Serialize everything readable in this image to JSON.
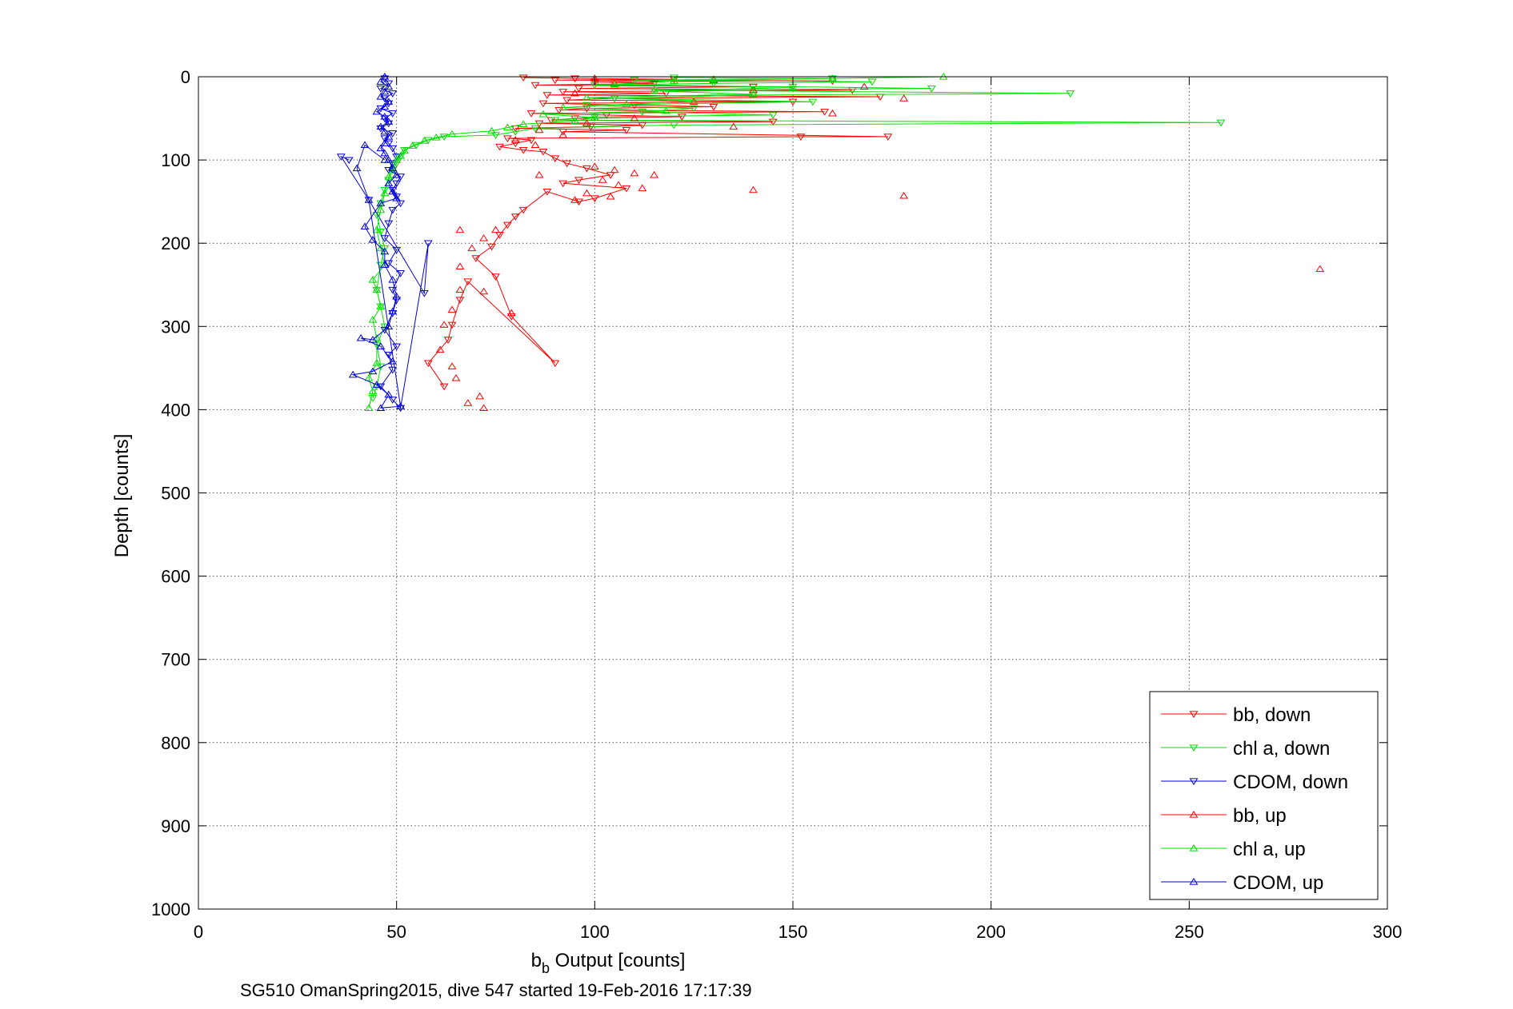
{
  "colors": {
    "bb": "#ff0000",
    "chl": "#00e000",
    "cdom": "#0000e0",
    "grid": "#555555",
    "axis": "#000000"
  },
  "chart_data": {
    "type": "scatter",
    "xlabel_main": "b",
    "xlabel_sub": "b",
    "xlabel_rest": " Output [counts]",
    "ylabel": "Depth [counts]",
    "caption": "SG510 OmanSpring2015, dive 547 started 19-Feb-2016 17:17:39",
    "xlim": [
      0,
      300
    ],
    "ylim": [
      0,
      1000
    ],
    "y_reversed": true,
    "grid": true,
    "legend_position": "bottom-right",
    "xticks": [
      0,
      50,
      100,
      150,
      200,
      250,
      300
    ],
    "yticks": [
      0,
      100,
      200,
      300,
      400,
      500,
      600,
      700,
      800,
      900,
      1000
    ],
    "series": [
      {
        "name": "bb, down",
        "color_key": "bb",
        "marker": "triangle-down",
        "lines": true,
        "points": [
          [
            82,
            1
          ],
          [
            95,
            2
          ],
          [
            120,
            3
          ],
          [
            90,
            4
          ],
          [
            160,
            5
          ],
          [
            100,
            6
          ],
          [
            115,
            8
          ],
          [
            85,
            10
          ],
          [
            140,
            12
          ],
          [
            96,
            14
          ],
          [
            165,
            16
          ],
          [
            92,
            18
          ],
          [
            118,
            20
          ],
          [
            88,
            22
          ],
          [
            172,
            24
          ],
          [
            105,
            26
          ],
          [
            93,
            28
          ],
          [
            150,
            30
          ],
          [
            87,
            32
          ],
          [
            110,
            34
          ],
          [
            130,
            36
          ],
          [
            98,
            38
          ],
          [
            91,
            40
          ],
          [
            158,
            42
          ],
          [
            84,
            44
          ],
          [
            103,
            46
          ],
          [
            122,
            48
          ],
          [
            95,
            50
          ],
          [
            89,
            52
          ],
          [
            145,
            54
          ],
          [
            86,
            56
          ],
          [
            112,
            58
          ],
          [
            99,
            60
          ],
          [
            80,
            62
          ],
          [
            108,
            64
          ],
          [
            92,
            66
          ],
          [
            174,
            72
          ],
          [
            152,
            72
          ],
          [
            78,
            74
          ],
          [
            84,
            76
          ],
          [
            80,
            80
          ],
          [
            76,
            84
          ],
          [
            82,
            88
          ],
          [
            87,
            90
          ],
          [
            90,
            98
          ],
          [
            93,
            104
          ],
          [
            98,
            110
          ],
          [
            104,
            118
          ],
          [
            96,
            124
          ],
          [
            92,
            128
          ],
          [
            108,
            134
          ],
          [
            100,
            146
          ],
          [
            96,
            150
          ],
          [
            88,
            138
          ],
          [
            82,
            160
          ],
          [
            80,
            168
          ],
          [
            78,
            178
          ],
          [
            76,
            190
          ],
          [
            74,
            204
          ],
          [
            70,
            218
          ],
          [
            75,
            240
          ],
          [
            79,
            288
          ],
          [
            90,
            344
          ],
          [
            68,
            246
          ],
          [
            66,
            268
          ],
          [
            64,
            298
          ],
          [
            63,
            316
          ],
          [
            58,
            344
          ],
          [
            62,
            372
          ]
        ]
      },
      {
        "name": "chl a, down",
        "color_key": "chl",
        "marker": "triangle-down",
        "lines": true,
        "points": [
          [
            120,
            1
          ],
          [
            160,
            2
          ],
          [
            110,
            4
          ],
          [
            170,
            6
          ],
          [
            130,
            8
          ],
          [
            100,
            10
          ],
          [
            150,
            12
          ],
          [
            185,
            14
          ],
          [
            115,
            16
          ],
          [
            220,
            20
          ],
          [
            140,
            22
          ],
          [
            105,
            26
          ],
          [
            155,
            30
          ],
          [
            98,
            34
          ],
          [
            125,
            38
          ],
          [
            112,
            42
          ],
          [
            145,
            46
          ],
          [
            100,
            48
          ],
          [
            90,
            52
          ],
          [
            258,
            55
          ],
          [
            120,
            58
          ],
          [
            85,
            62
          ],
          [
            80,
            66
          ],
          [
            75,
            70
          ],
          [
            62,
            72
          ],
          [
            58,
            76
          ],
          [
            55,
            82
          ],
          [
            52,
            88
          ],
          [
            51,
            96
          ],
          [
            50,
            104
          ],
          [
            49,
            112
          ],
          [
            48,
            124
          ],
          [
            47,
            136
          ],
          [
            46,
            152
          ],
          [
            45,
            166
          ],
          [
            46,
            186
          ],
          [
            47,
            206
          ],
          [
            46,
            226
          ],
          [
            45,
            256
          ],
          [
            46,
            276
          ],
          [
            47,
            300
          ],
          [
            45,
            322
          ],
          [
            46,
            348
          ],
          [
            45,
            372
          ],
          [
            44,
            386
          ]
        ]
      },
      {
        "name": "CDOM, down",
        "color_key": "cdom",
        "marker": "triangle-down",
        "lines": true,
        "points": [
          [
            47,
            2
          ],
          [
            48,
            8
          ],
          [
            46,
            14
          ],
          [
            49,
            20
          ],
          [
            47,
            26
          ],
          [
            48,
            32
          ],
          [
            46,
            38
          ],
          [
            49,
            44
          ],
          [
            47,
            50
          ],
          [
            48,
            56
          ],
          [
            46,
            62
          ],
          [
            49,
            68
          ],
          [
            47,
            74
          ],
          [
            48,
            80
          ],
          [
            49,
            86
          ],
          [
            50,
            96
          ],
          [
            49,
            104
          ],
          [
            48,
            112
          ],
          [
            51,
            120
          ],
          [
            50,
            128
          ],
          [
            49,
            136
          ],
          [
            50,
            144
          ],
          [
            51,
            152
          ],
          [
            49,
            160
          ],
          [
            48,
            176
          ],
          [
            47,
            194
          ],
          [
            50,
            208
          ],
          [
            48,
            224
          ],
          [
            51,
            236
          ],
          [
            49,
            256
          ],
          [
            50,
            268
          ],
          [
            49,
            284
          ],
          [
            47,
            304
          ],
          [
            50,
            324
          ],
          [
            48,
            334
          ],
          [
            49,
            352
          ],
          [
            46,
            372
          ],
          [
            49,
            388
          ],
          [
            51,
            398
          ],
          [
            58,
            200
          ],
          [
            57,
            260
          ],
          [
            43,
            148
          ],
          [
            36,
            96
          ],
          [
            38,
            100
          ]
        ]
      },
      {
        "name": "bb, up",
        "color_key": "bb",
        "marker": "triangle-up",
        "lines": false,
        "points": [
          [
            100,
            2
          ],
          [
            130,
            4
          ],
          [
            105,
            8
          ],
          [
            168,
            12
          ],
          [
            140,
            16
          ],
          [
            95,
            20
          ],
          [
            178,
            26
          ],
          [
            125,
            30
          ],
          [
            160,
            44
          ],
          [
            110,
            50
          ],
          [
            98,
            56
          ],
          [
            135,
            60
          ],
          [
            86,
            64
          ],
          [
            92,
            70
          ],
          [
            80,
            76
          ],
          [
            85,
            82
          ],
          [
            100,
            108
          ],
          [
            105,
            112
          ],
          [
            110,
            116
          ],
          [
            115,
            118
          ],
          [
            102,
            124
          ],
          [
            106,
            130
          ],
          [
            112,
            134
          ],
          [
            98,
            140
          ],
          [
            104,
            144
          ],
          [
            95,
            148
          ],
          [
            140,
            136
          ],
          [
            178,
            143
          ],
          [
            283,
            231
          ],
          [
            75,
            184
          ],
          [
            72,
            194
          ],
          [
            69,
            206
          ],
          [
            66,
            228
          ],
          [
            72,
            258
          ],
          [
            66,
            256
          ],
          [
            64,
            280
          ],
          [
            62,
            298
          ],
          [
            61,
            328
          ],
          [
            64,
            348
          ],
          [
            65,
            362
          ],
          [
            68,
            392
          ],
          [
            72,
            398
          ],
          [
            71,
            384
          ],
          [
            66,
            184
          ],
          [
            79,
            284
          ],
          [
            86,
            118
          ]
        ]
      },
      {
        "name": "chl a, up",
        "color_key": "chl",
        "marker": "triangle-up",
        "lines": true,
        "points": [
          [
            188,
            0
          ],
          [
            160,
            2
          ],
          [
            120,
            5
          ],
          [
            130,
            3
          ],
          [
            105,
            9
          ],
          [
            150,
            13
          ],
          [
            115,
            17
          ],
          [
            140,
            21
          ],
          [
            98,
            25
          ],
          [
            125,
            29
          ],
          [
            108,
            33
          ],
          [
            92,
            37
          ],
          [
            118,
            41
          ],
          [
            87,
            45
          ],
          [
            100,
            49
          ],
          [
            95,
            53
          ],
          [
            82,
            57
          ],
          [
            78,
            61
          ],
          [
            74,
            65
          ],
          [
            64,
            69
          ],
          [
            60,
            73
          ],
          [
            57,
            77
          ],
          [
            54,
            83
          ],
          [
            52,
            89
          ],
          [
            51,
            95
          ],
          [
            50,
            100
          ],
          [
            49,
            110
          ],
          [
            48,
            120
          ],
          [
            47,
            140
          ],
          [
            46,
            160
          ],
          [
            45,
            184
          ],
          [
            46,
            206
          ],
          [
            47,
            226
          ],
          [
            44,
            244
          ],
          [
            45,
            256
          ],
          [
            46,
            276
          ],
          [
            44,
            292
          ],
          [
            45,
            314
          ],
          [
            45,
            344
          ],
          [
            43,
            362
          ],
          [
            44,
            378
          ],
          [
            43,
            398
          ]
        ]
      },
      {
        "name": "CDOM, up",
        "color_key": "cdom",
        "marker": "triangle-up",
        "lines": true,
        "points": [
          [
            47,
            0
          ],
          [
            46,
            6
          ],
          [
            48,
            12
          ],
          [
            47,
            18
          ],
          [
            46,
            24
          ],
          [
            48,
            30
          ],
          [
            47,
            36
          ],
          [
            45,
            42
          ],
          [
            47,
            48
          ],
          [
            48,
            54
          ],
          [
            46,
            60
          ],
          [
            47,
            66
          ],
          [
            48,
            72
          ],
          [
            47,
            80
          ],
          [
            46,
            86
          ],
          [
            47,
            92
          ],
          [
            48,
            100
          ],
          [
            49,
            110
          ],
          [
            50,
            118
          ],
          [
            48,
            128
          ],
          [
            49,
            138
          ],
          [
            50,
            146
          ],
          [
            46,
            152
          ],
          [
            42,
            180
          ],
          [
            44,
            196
          ],
          [
            47,
            210
          ],
          [
            47,
            226
          ],
          [
            49,
            244
          ],
          [
            50,
            264
          ],
          [
            49,
            282
          ],
          [
            48,
            300
          ],
          [
            44,
            316
          ],
          [
            41,
            314
          ],
          [
            46,
            324
          ],
          [
            49,
            342
          ],
          [
            44,
            354
          ],
          [
            39,
            358
          ],
          [
            45,
            370
          ],
          [
            48,
            382
          ],
          [
            46,
            398
          ],
          [
            51,
            396
          ],
          [
            43,
            148
          ],
          [
            40,
            110
          ],
          [
            42,
            82
          ],
          [
            47,
            100
          ]
        ]
      }
    ]
  }
}
